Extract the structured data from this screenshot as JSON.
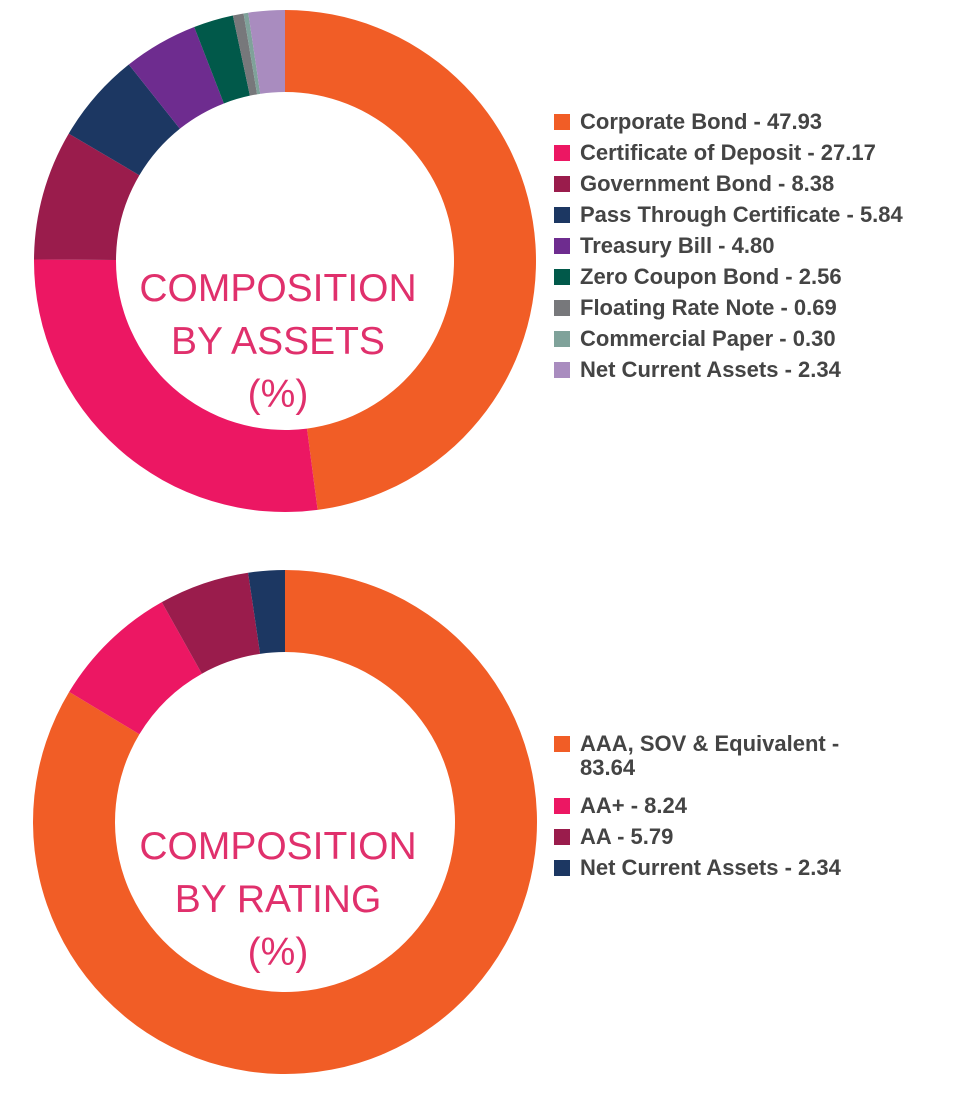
{
  "chart_data": [
    {
      "type": "pie",
      "donut": true,
      "title": "COMPOSITION BY ASSETS (%)",
      "title_lines": [
        "COMPOSITION",
        "BY ASSETS",
        "(%)"
      ],
      "categories": [
        "Corporate Bond",
        "Certificate of Deposit",
        "Government Bond",
        "Pass Through Certificate",
        "Treasury Bill",
        "Zero Coupon Bond",
        "Floating Rate Note",
        "Commercial Paper",
        "Net Current Assets"
      ],
      "values": [
        47.93,
        27.17,
        8.38,
        5.84,
        4.8,
        2.56,
        0.69,
        0.3,
        2.34
      ],
      "labels": [
        "Corporate Bond - 47.93",
        "Certificate of Deposit - 27.17",
        "Government Bond - 8.38",
        "Pass Through Certificate - 5.84",
        "Treasury Bill - 4.80",
        "Zero Coupon Bond - 2.56",
        "Floating Rate Note - 0.69",
        "Commercial Paper - 0.30",
        "Net Current Assets - 2.34"
      ],
      "colors": [
        "#F15D26",
        "#EC1763",
        "#9A1C4C",
        "#1C3762",
        "#6E2C8F",
        "#01594A",
        "#77787B",
        "#7FA29A",
        "#A98CBF"
      ],
      "legend_position": "right"
    },
    {
      "type": "pie",
      "donut": true,
      "title": "COMPOSITION BY RATING (%)",
      "title_lines": [
        "COMPOSITION",
        "BY RATING",
        "(%)"
      ],
      "categories": [
        "AAA, SOV & Equivalent",
        "AA+",
        "AA",
        "Net Current Assets"
      ],
      "values": [
        83.64,
        8.24,
        5.79,
        2.34
      ],
      "labels": [
        "AAA, SOV & Equivalent - 83.64",
        "AA+ - 8.24",
        "AA - 5.79",
        "Net Current Assets - 2.34"
      ],
      "colors": [
        "#F15D26",
        "#EC1763",
        "#9A1C4C",
        "#1C3762"
      ],
      "legend_position": "right"
    }
  ]
}
